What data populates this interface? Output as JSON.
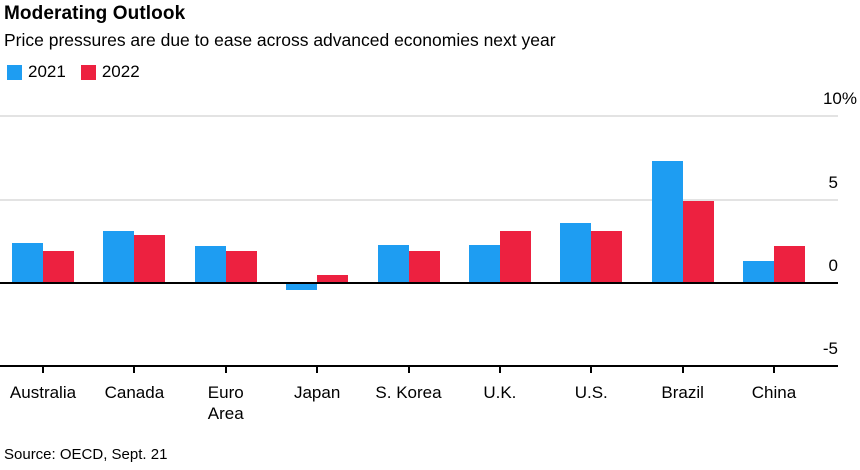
{
  "title": "Moderating Outlook",
  "subtitle": "Price pressures are due to ease across advanced economies next year",
  "legend": [
    {
      "label": "2021",
      "color": "#1e9df2"
    },
    {
      "label": "2022",
      "color": "#ed2140"
    }
  ],
  "source": "Source: OECD, Sept. 21",
  "colors": {
    "bar_2021": "#1e9df2",
    "bar_2022": "#ed2140",
    "gridline": "#e3e3e3",
    "axis": "#000000",
    "text": "#000000",
    "background": "#ffffff"
  },
  "chart_data": {
    "type": "bar",
    "title": "Moderating Outlook",
    "subtitle": "Price pressures are due to ease across advanced economies next year",
    "unit": "percent",
    "categories": [
      "Australia",
      "Canada",
      "Euro Area",
      "Japan",
      "S. Korea",
      "U.K.",
      "U.S.",
      "Brazil",
      "China"
    ],
    "category_axis_labels": [
      "Australia",
      "Canada",
      "Euro\nArea",
      "Japan",
      "S. Korea",
      "U.K.",
      "U.S.",
      "Brazil",
      "China"
    ],
    "series": [
      {
        "name": "2021",
        "color": "#1e9df2",
        "values": [
          2.4,
          3.1,
          2.2,
          -0.4,
          2.3,
          2.3,
          3.6,
          7.3,
          1.3
        ]
      },
      {
        "name": "2022",
        "color": "#ed2140",
        "values": [
          1.9,
          2.9,
          1.9,
          0.5,
          1.9,
          3.1,
          3.1,
          4.9,
          2.2
        ]
      }
    ],
    "xlabel": "",
    "ylabel": "",
    "ylim": [
      -5,
      10
    ],
    "y_ticks": [
      {
        "value": 10,
        "label": "10%"
      },
      {
        "value": 5,
        "label": "5"
      },
      {
        "value": 0,
        "label": "0"
      },
      {
        "value": -5,
        "label": "-5"
      }
    ],
    "grid": "horizontal",
    "legend_position": "top-left"
  }
}
